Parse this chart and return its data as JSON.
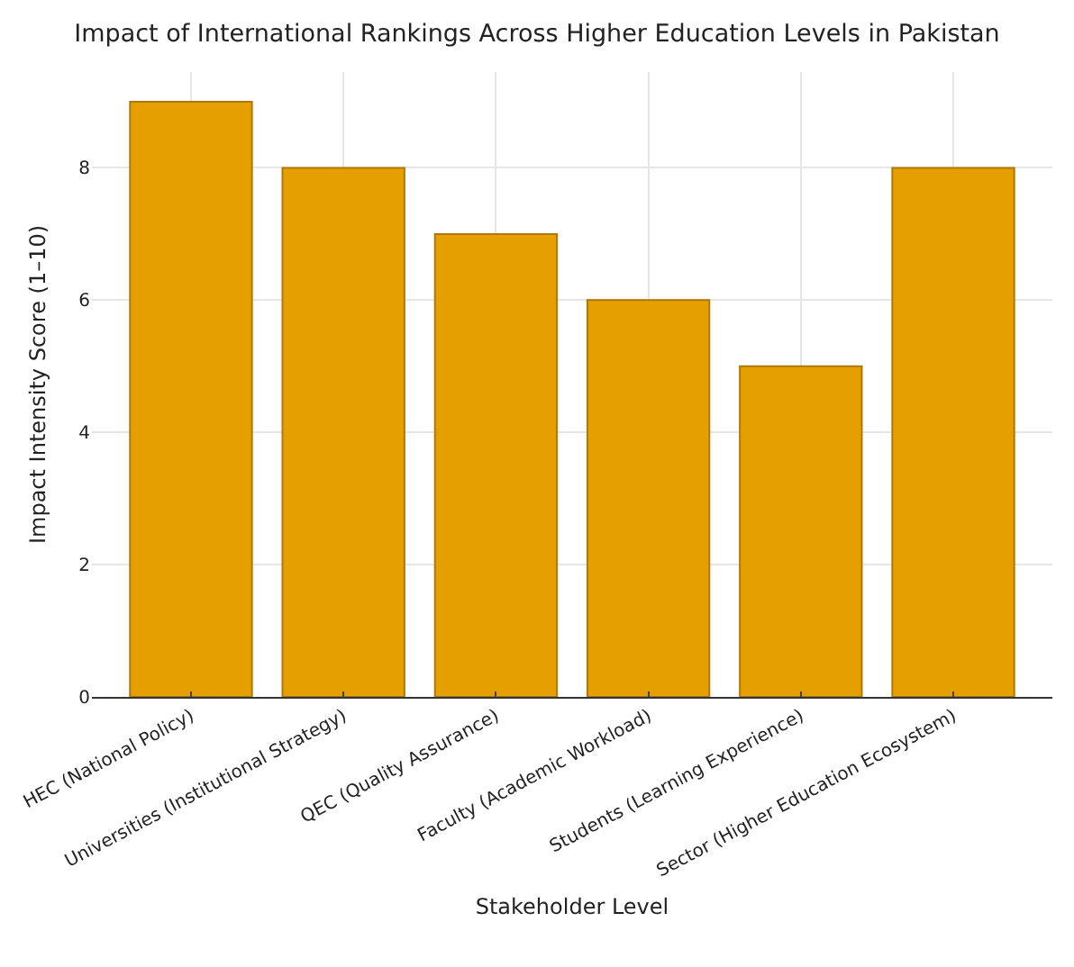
{
  "chart_data": {
    "type": "bar",
    "title": "Impact of International Rankings Across Higher Education Levels in Pakistan",
    "xlabel": "Stakeholder Level",
    "ylabel": "Impact Intensity Score (1–10)",
    "categories": [
      "HEC (National Policy)",
      "Universities (Institutional Strategy)",
      "QEC (Quality Assurance)",
      "Faculty (Academic Workload)",
      "Students (Learning Experience)",
      "Sector (Higher Education Ecosystem)"
    ],
    "values": [
      9,
      8,
      7,
      6,
      5,
      8
    ],
    "color": "#e5a000",
    "ylim": [
      0,
      9.45
    ],
    "yticks": [
      0,
      2,
      4,
      6,
      8
    ],
    "grid": true
  }
}
